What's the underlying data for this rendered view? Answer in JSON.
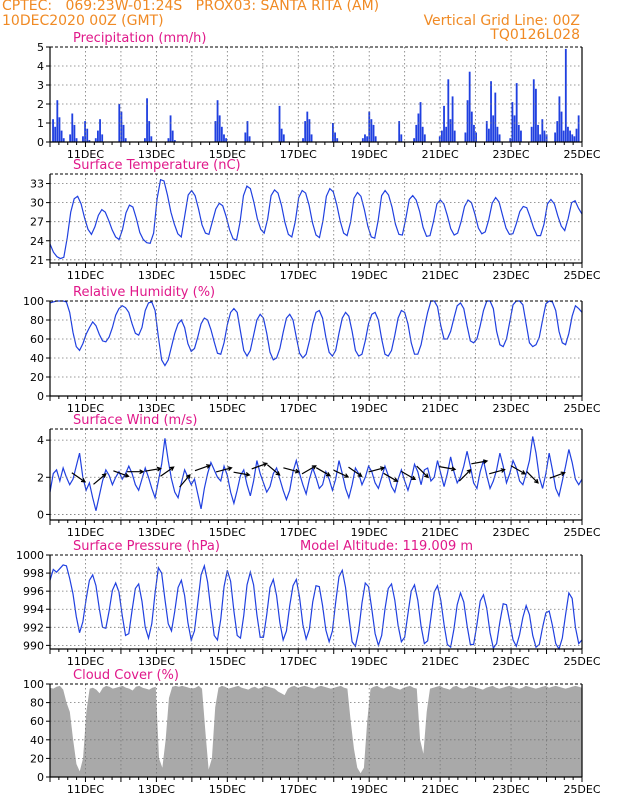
{
  "header": {
    "line1_left": "CPTEC:   069:23W-01:24S   PROX03: SANTA RITA (AM)",
    "line2_left": "10DEC2020 00Z (GMT)",
    "line2_right": "Vertical Grid Line: 00Z",
    "line3_right": "TQ0126L028"
  },
  "colors": {
    "header": "#f08a24",
    "title": "#e0188a",
    "line": "#2040e0",
    "bar": "#2040e0",
    "cloud": "#a9a9a9"
  },
  "chart_data": [
    {
      "type": "bar",
      "title": "Precipitation (mm/h)",
      "ylim": [
        0,
        5
      ],
      "yticks": [
        "0",
        "1",
        "2",
        "3",
        "4",
        "5"
      ],
      "xticks": [
        "11DEC",
        "13DEC",
        "15DEC",
        "17DEC",
        "19DEC",
        "21DEC",
        "23DEC",
        "25DEC"
      ],
      "x_start": "10DEC2020 00Z",
      "x_end": "25DEC2020 00Z",
      "step_hours": 3,
      "values": [
        0.0,
        1.2,
        0.8,
        2.2,
        1.3,
        0.6,
        0.2,
        0.0,
        0.0,
        0.4,
        1.5,
        0.9,
        0.2,
        0.0,
        0.0,
        0.3,
        1.1,
        0.7,
        0.1,
        0.0,
        0.0,
        0.2,
        0.6,
        1.2,
        0.4,
        0.0,
        0.0,
        0.0,
        0.0,
        0.0,
        0.0,
        0.0,
        2.0,
        1.6,
        0.9,
        0.2,
        0.0,
        0.0,
        0.0,
        0.0,
        0.0,
        0.0,
        0.0,
        0.0,
        0.2,
        2.3,
        1.1,
        0.3,
        0.0,
        0.0,
        0.0,
        0.0,
        0.0,
        0.0,
        0.0,
        0.2,
        1.4,
        0.6,
        0.1,
        0.0,
        0.0,
        0.0,
        0.0,
        0.0,
        0.0,
        0.0,
        0.0,
        0.0,
        0.0,
        0.0,
        0.0,
        0.0,
        0.0,
        0.0,
        0.0,
        0.0,
        0.0,
        1.1,
        2.2,
        1.4,
        0.8,
        0.4,
        0.2,
        0.0,
        0.0,
        0.0,
        0.0,
        0.0,
        0.0,
        0.0,
        0.0,
        0.5,
        1.1,
        0.3,
        0.0,
        0.0,
        0.0,
        0.0,
        0.0,
        0.0,
        0.0,
        0.0,
        0.0,
        0.0,
        0.0,
        0.0,
        0.0,
        1.9,
        0.7,
        0.4,
        0.0,
        0.0,
        0.0,
        0.0,
        0.0,
        0.0,
        0.0,
        0.0,
        0.2,
        1.1,
        1.6,
        1.2,
        0.4,
        0.0,
        0.0,
        0.0,
        0.0,
        0.0,
        0.0,
        0.0,
        0.0,
        0.0,
        1.0,
        0.5,
        0.2,
        0.0,
        0.0,
        0.0,
        0.0,
        0.0,
        0.0,
        0.0,
        0.0,
        0.0,
        0.0,
        0.0,
        0.2,
        0.4,
        0.3,
        1.6,
        1.2,
        0.9,
        0.3,
        0.0,
        0.0,
        0.0,
        0.0,
        0.0,
        0.0,
        0.0,
        0.0,
        0.0,
        0.0,
        1.1,
        0.4,
        0.0,
        0.0,
        0.0,
        0.0,
        0.0,
        0.2,
        0.9,
        1.5,
        2.1,
        0.8,
        0.4,
        0.0,
        0.0,
        0.0,
        0.0,
        0.0,
        0.0,
        0.3,
        0.6,
        1.9,
        0.8,
        3.3,
        1.2,
        2.4,
        0.6,
        0.0,
        0.0,
        0.0,
        0.0,
        0.5,
        2.2,
        3.7,
        1.6,
        0.9,
        0.5,
        0.0,
        0.0,
        0.0,
        0.0,
        1.1,
        0.7,
        3.2,
        1.4,
        2.6,
        0.8,
        0.4,
        0.0,
        0.0,
        0.0,
        0.0,
        0.2,
        2.1,
        1.4,
        3.1,
        0.9,
        0.6,
        0.0,
        0.0,
        0.0,
        0.0,
        0.8,
        3.3,
        2.8,
        0.9,
        0.4,
        1.2,
        0.6,
        0.4,
        0.0,
        0.0,
        0.0,
        0.5,
        1.1,
        2.4,
        1.6,
        0.6,
        4.9,
        0.8,
        0.6,
        0.4,
        0.3,
        0.7,
        1.4,
        0.0
      ]
    },
    {
      "type": "line",
      "title": "Surface Temperature (nC)",
      "ylim": [
        20.5,
        34.5
      ],
      "yticks": [
        "21",
        "24",
        "27",
        "30",
        "33"
      ],
      "xticks": [
        "11DEC",
        "13DEC",
        "15DEC",
        "17DEC",
        "19DEC",
        "21DEC",
        "23DEC",
        "25DEC"
      ],
      "values": [
        23.5,
        22.2,
        21.5,
        21.2,
        21.4,
        24.5,
        28.5,
        30.6,
        31.0,
        29.8,
        27.6,
        25.8,
        25.0,
        26.2,
        28.0,
        28.9,
        28.5,
        27.2,
        25.7,
        24.6,
        24.2,
        25.8,
        28.4,
        29.6,
        29.3,
        27.5,
        25.3,
        24.2,
        23.7,
        23.6,
        25.2,
        30.6,
        33.6,
        33.4,
        31.2,
        28.5,
        26.6,
        25.1,
        24.6,
        27.9,
        31.2,
        31.9,
        31.1,
        29.0,
        26.5,
        25.2,
        25.0,
        27.0,
        29.0,
        29.9,
        29.5,
        27.8,
        25.7,
        24.3,
        24.1,
        26.9,
        31.1,
        32.6,
        32.2,
        30.1,
        27.5,
        25.8,
        25.2,
        27.4,
        31.1,
        32.0,
        31.5,
        29.6,
        26.9,
        25.0,
        24.6,
        27.0,
        30.8,
        31.9,
        31.5,
        29.6,
        26.8,
        24.9,
        24.5,
        27.1,
        31.0,
        32.2,
        31.7,
        29.7,
        27.1,
        25.2,
        24.8,
        26.9,
        30.7,
        31.6,
        31.0,
        28.9,
        26.3,
        24.6,
        24.4,
        27.2,
        31.1,
        31.9,
        31.2,
        29.3,
        26.6,
        25.0,
        24.9,
        27.5,
        30.5,
        31.1,
        30.4,
        28.6,
        26.1,
        24.7,
        24.8,
        27.0,
        29.8,
        30.4,
        29.8,
        28.0,
        25.9,
        24.9,
        25.2,
        27.0,
        29.4,
        30.4,
        30.0,
        28.2,
        26.0,
        25.1,
        25.4,
        27.3,
        29.9,
        30.8,
        30.1,
        28.0,
        26.0,
        25.0,
        25.1,
        26.7,
        28.6,
        29.4,
        29.2,
        27.7,
        26.0,
        24.8,
        24.8,
        26.6,
        29.8,
        30.5,
        29.8,
        27.9,
        26.3,
        25.6,
        27.5,
        30.0,
        30.3,
        29.1,
        28.2
      ]
    },
    {
      "type": "line",
      "title": "Relative Humidity (%)",
      "ylim": [
        0,
        100
      ],
      "yticks": [
        "0",
        "20",
        "40",
        "60",
        "80",
        "100"
      ],
      "xticks": [
        "11DEC",
        "13DEC",
        "15DEC",
        "17DEC",
        "19DEC",
        "21DEC",
        "23DEC",
        "25DEC"
      ],
      "values": [
        98,
        99,
        100,
        100,
        100,
        99,
        88,
        67,
        52,
        48,
        55,
        65,
        72,
        78,
        74,
        65,
        58,
        57,
        62,
        72,
        85,
        92,
        95,
        93,
        88,
        76,
        66,
        64,
        72,
        90,
        98,
        99,
        90,
        62,
        38,
        32,
        38,
        52,
        66,
        76,
        80,
        72,
        55,
        47,
        50,
        62,
        76,
        82,
        80,
        70,
        57,
        45,
        44,
        56,
        75,
        88,
        92,
        88,
        68,
        48,
        42,
        48,
        64,
        80,
        86,
        82,
        66,
        46,
        38,
        40,
        50,
        67,
        82,
        86,
        80,
        62,
        45,
        40,
        44,
        58,
        76,
        88,
        90,
        82,
        62,
        46,
        42,
        48,
        66,
        82,
        88,
        84,
        68,
        48,
        42,
        44,
        58,
        76,
        86,
        88,
        80,
        60,
        44,
        42,
        48,
        64,
        82,
        90,
        88,
        76,
        56,
        44,
        44,
        54,
        72,
        88,
        100,
        100,
        94,
        74,
        60,
        60,
        68,
        82,
        95,
        98,
        92,
        74,
        58,
        56,
        60,
        74,
        90,
        100,
        100,
        92,
        68,
        54,
        52,
        60,
        78,
        96,
        100,
        100,
        96,
        76,
        56,
        52,
        54,
        62,
        80,
        97,
        100,
        99,
        90,
        68,
        56,
        54,
        66,
        84,
        95,
        92,
        88
      ]
    },
    {
      "type": "line",
      "title": "Surface Wind (m/s)",
      "ylim": [
        -0.3,
        4.6
      ],
      "yticks": [
        "0",
        "2",
        "4"
      ],
      "xticks": [
        "11DEC",
        "13DEC",
        "15DEC",
        "17DEC",
        "19DEC",
        "21DEC",
        "23DEC",
        "25DEC"
      ],
      "values": [
        1.2,
        2.2,
        2.4,
        1.8,
        2.5,
        2.0,
        1.6,
        1.9,
        2.6,
        3.3,
        2.0,
        1.3,
        1.7,
        0.9,
        0.2,
        1.0,
        1.8,
        2.4,
        2.1,
        1.6,
        2.0,
        2.3,
        1.9,
        2.2,
        2.6,
        2.2,
        1.6,
        1.3,
        1.9,
        2.5,
        2.0,
        1.4,
        0.9,
        1.8,
        2.7,
        4.1,
        2.9,
        1.9,
        1.2,
        0.9,
        1.7,
        2.4,
        2.0,
        1.6,
        1.9,
        1.1,
        0.3,
        1.4,
        2.2,
        2.8,
        2.4,
        2.0,
        1.8,
        2.6,
        2.1,
        1.2,
        0.6,
        1.3,
        2.1,
        2.4,
        1.6,
        1.0,
        1.8,
        2.9,
        2.2,
        1.7,
        1.2,
        1.5,
        2.2,
        2.5,
        1.9,
        1.3,
        0.8,
        1.3,
        2.3,
        2.9,
        2.2,
        1.6,
        1.1,
        1.9,
        2.5,
        2.0,
        1.4,
        1.6,
        2.3,
        1.9,
        1.3,
        1.9,
        2.9,
        2.2,
        1.4,
        0.9,
        1.6,
        2.5,
        2.2,
        1.6,
        2.0,
        2.6,
        2.3,
        1.7,
        1.4,
        2.0,
        2.6,
        2.1,
        1.5,
        1.2,
        1.9,
        2.4,
        1.8,
        1.3,
        1.9,
        2.7,
        2.3,
        1.6,
        2.4,
        2.5,
        1.8,
        2.0,
        2.9,
        2.2,
        1.5,
        2.2,
        3.1,
        2.3,
        1.7,
        2.0,
        2.6,
        3.4,
        2.6,
        1.7,
        1.4,
        2.3,
        2.9,
        2.1,
        1.4,
        1.8,
        2.4,
        3.3,
        2.6,
        1.7,
        2.2,
        2.9,
        2.5,
        1.8,
        1.6,
        2.2,
        2.9,
        4.2,
        3.3,
        2.0,
        1.4,
        2.2,
        3.3,
        2.4,
        1.4,
        1.0,
        1.8,
        2.6,
        3.5,
        2.8,
        1.9,
        1.6,
        1.9
      ]
    },
    {
      "type": "line",
      "title": "Surface Pressure (hPa)",
      "annotation": "Model Altitude: 119.009 m",
      "ylim": [
        989.6,
        1000
      ],
      "yticks": [
        "990",
        "992",
        "994",
        "996",
        "998",
        "1000"
      ],
      "xticks": [
        "11DEC",
        "13DEC",
        "15DEC",
        "17DEC",
        "19DEC",
        "21DEC",
        "23DEC",
        "25DEC"
      ],
      "values": [
        997.2,
        998.4,
        998.1,
        998.5,
        998.9,
        998.8,
        997.4,
        995.7,
        993.2,
        991.4,
        992.6,
        995.1,
        997.2,
        997.8,
        996.6,
        994.1,
        992.0,
        991.9,
        993.8,
        996.1,
        996.9,
        995.9,
        993.3,
        991.1,
        991.3,
        993.9,
        996.3,
        996.8,
        994.9,
        992.0,
        990.8,
        992.4,
        995.8,
        998.6,
        998.0,
        995.1,
        992.4,
        991.6,
        993.8,
        996.4,
        997.2,
        995.5,
        992.5,
        990.6,
        991.6,
        994.7,
        997.8,
        998.8,
        997.0,
        993.9,
        991.1,
        990.6,
        992.9,
        996.5,
        998.3,
        997.1,
        993.8,
        991.1,
        990.8,
        993.3,
        996.7,
        998.1,
        996.7,
        993.4,
        990.9,
        990.9,
        993.4,
        996.4,
        997.3,
        995.5,
        992.5,
        990.6,
        991.6,
        994.4,
        996.6,
        997.3,
        995.3,
        992.3,
        990.7,
        991.8,
        994.8,
        996.6,
        996.5,
        994.4,
        991.7,
        990.4,
        991.6,
        994.8,
        997.6,
        998.3,
        996.4,
        993.2,
        990.4,
        989.9,
        991.6,
        994.7,
        996.9,
        996.5,
        994.0,
        991.3,
        990.0,
        991.1,
        994.0,
        996.3,
        996.8,
        995.0,
        992.2,
        990.4,
        990.9,
        993.5,
        996.0,
        996.7,
        995.0,
        992.1,
        990.2,
        990.5,
        993.1,
        995.9,
        996.6,
        995.0,
        992.3,
        990.1,
        989.8,
        991.8,
        994.5,
        995.8,
        994.8,
        992.2,
        990.1,
        990.1,
        992.3,
        994.9,
        995.6,
        994.1,
        991.4,
        989.7,
        990.2,
        992.6,
        994.6,
        994.5,
        992.6,
        990.6,
        989.9,
        991.2,
        993.1,
        994.4,
        993.4,
        991.1,
        989.8,
        990.1,
        992.0,
        993.6,
        993.8,
        992.2,
        990.2,
        989.6,
        990.8,
        993.4,
        995.8,
        995.2,
        992.0,
        990.2,
        990.6
      ]
    },
    {
      "type": "area",
      "title": "Cloud Cover (%)",
      "ylim": [
        0,
        100
      ],
      "yticks": [
        "0",
        "20",
        "40",
        "60",
        "80",
        "100"
      ],
      "xticks": [
        "11DEC",
        "13DEC",
        "15DEC",
        "17DEC",
        "19DEC",
        "21DEC",
        "23DEC",
        "25DEC"
      ],
      "values": [
        96,
        95,
        97,
        98,
        94,
        80,
        70,
        40,
        14,
        6,
        20,
        70,
        95,
        96,
        94,
        90,
        96,
        98,
        97,
        95,
        96,
        97,
        98,
        96,
        95,
        93,
        97,
        98,
        96,
        95,
        94,
        96,
        97,
        20,
        10,
        40,
        85,
        97,
        98,
        97,
        98,
        97,
        96,
        95,
        96,
        98,
        95,
        50,
        8,
        20,
        75,
        96,
        98,
        97,
        95,
        96,
        97,
        98,
        96,
        95,
        94,
        96,
        97,
        95,
        96,
        98,
        97,
        96,
        95,
        92,
        90,
        88,
        95,
        97,
        98,
        96,
        97,
        98,
        97,
        96,
        95,
        97,
        98,
        97,
        96,
        95,
        96,
        97,
        98,
        96,
        95,
        60,
        30,
        10,
        4,
        10,
        60,
        95,
        97,
        98,
        96,
        95,
        97,
        98,
        96,
        95,
        94,
        96,
        97,
        98,
        96,
        95,
        40,
        25,
        70,
        95,
        96,
        97,
        98,
        96,
        95,
        94,
        97,
        98,
        96,
        95,
        96,
        98,
        97,
        96,
        95,
        94,
        96,
        97,
        98,
        96,
        95,
        96,
        97,
        98,
        97,
        96,
        95,
        96,
        98,
        97,
        96,
        95,
        96,
        97,
        98,
        96,
        97,
        98,
        97,
        96,
        95,
        96,
        97,
        98,
        97,
        96
      ]
    }
  ]
}
